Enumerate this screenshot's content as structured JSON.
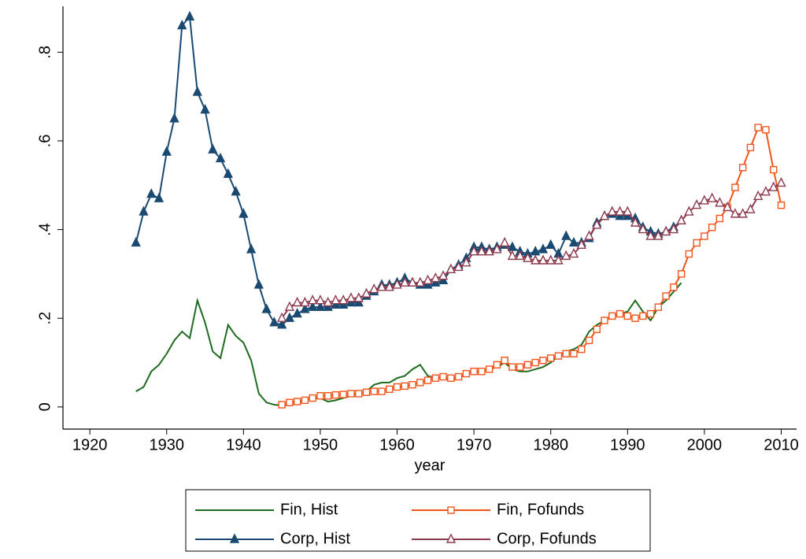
{
  "chart_data": {
    "type": "line",
    "x_label": "year",
    "xlim": [
      1916.5,
      2012
    ],
    "xticks": [
      1920,
      1930,
      1940,
      1950,
      1960,
      1970,
      1980,
      1990,
      2000,
      2010
    ],
    "ylim": [
      -0.05,
      0.9
    ],
    "yticks": [
      0,
      {
        "value": 0.2,
        "label": ".2"
      },
      {
        "value": 0.4,
        "label": ".4"
      },
      {
        "value": 0.6,
        "label": ".6"
      },
      {
        "value": 0.8,
        "label": ".8"
      }
    ],
    "grid": false,
    "legend": "bottom",
    "series": [
      {
        "name": "Fin, Hist",
        "color": "#1f6b1f",
        "marker": "none",
        "x": [
          1926,
          1927,
          1928,
          1929,
          1930,
          1931,
          1932,
          1933,
          1934,
          1935,
          1936,
          1937,
          1938,
          1939,
          1940,
          1941,
          1942,
          1943,
          1944,
          1945,
          1946,
          1947,
          1948,
          1949,
          1950,
          1951,
          1952,
          1953,
          1954,
          1955,
          1956,
          1957,
          1958,
          1959,
          1960,
          1961,
          1962,
          1963,
          1964,
          1965,
          1966,
          1967,
          1968,
          1969,
          1970,
          1971,
          1972,
          1973,
          1974,
          1975,
          1976,
          1977,
          1978,
          1979,
          1980,
          1981,
          1982,
          1983,
          1984,
          1985,
          1986,
          1987,
          1988,
          1989,
          1990,
          1991,
          1992,
          1993,
          1994,
          1995,
          1996,
          1997
        ],
        "values": [
          0.035,
          0.045,
          0.08,
          0.095,
          0.12,
          0.15,
          0.17,
          0.155,
          0.24,
          0.19,
          0.125,
          0.11,
          0.185,
          0.16,
          0.145,
          0.105,
          0.03,
          0.01,
          0.005,
          0.003,
          0.005,
          0.01,
          0.015,
          0.02,
          0.02,
          0.012,
          0.015,
          0.02,
          0.025,
          0.03,
          0.035,
          0.05,
          0.055,
          0.055,
          0.065,
          0.07,
          0.085,
          0.095,
          0.07,
          0.065,
          0.065,
          0.06,
          0.065,
          0.075,
          0.08,
          0.08,
          0.085,
          0.09,
          0.1,
          0.085,
          0.08,
          0.08,
          0.085,
          0.09,
          0.1,
          0.115,
          0.125,
          0.13,
          0.14,
          0.17,
          0.185,
          0.195,
          0.205,
          0.21,
          0.215,
          0.24,
          0.215,
          0.195,
          0.225,
          0.24,
          0.26,
          0.28
        ]
      },
      {
        "name": "Fin, Fofunds",
        "color": "#f2541b",
        "marker": "square-hollow",
        "x": [
          1945,
          1946,
          1947,
          1948,
          1949,
          1950,
          1951,
          1952,
          1953,
          1954,
          1955,
          1956,
          1957,
          1958,
          1959,
          1960,
          1961,
          1962,
          1963,
          1964,
          1965,
          1966,
          1967,
          1968,
          1969,
          1970,
          1971,
          1972,
          1973,
          1974,
          1975,
          1976,
          1977,
          1978,
          1979,
          1980,
          1981,
          1982,
          1983,
          1984,
          1985,
          1986,
          1987,
          1988,
          1989,
          1990,
          1991,
          1992,
          1993,
          1994,
          1995,
          1996,
          1997,
          1998,
          1999,
          2000,
          2001,
          2002,
          2003,
          2004,
          2005,
          2006,
          2007,
          2008,
          2009,
          2010
        ],
        "values": [
          0.005,
          0.01,
          0.012,
          0.015,
          0.02,
          0.025,
          0.025,
          0.027,
          0.028,
          0.03,
          0.03,
          0.033,
          0.035,
          0.035,
          0.04,
          0.045,
          0.047,
          0.05,
          0.055,
          0.06,
          0.065,
          0.068,
          0.065,
          0.068,
          0.075,
          0.08,
          0.08,
          0.085,
          0.095,
          0.105,
          0.09,
          0.09,
          0.095,
          0.1,
          0.105,
          0.11,
          0.115,
          0.12,
          0.12,
          0.13,
          0.15,
          0.175,
          0.195,
          0.205,
          0.21,
          0.205,
          0.2,
          0.205,
          0.21,
          0.225,
          0.25,
          0.27,
          0.3,
          0.345,
          0.37,
          0.385,
          0.405,
          0.425,
          0.45,
          0.495,
          0.54,
          0.585,
          0.63,
          0.625,
          0.535,
          0.455
        ]
      },
      {
        "name": "Corp, Hist",
        "color": "#1a4a72",
        "marker": "triangle",
        "x": [
          1926,
          1927,
          1928,
          1929,
          1930,
          1931,
          1932,
          1933,
          1934,
          1935,
          1936,
          1937,
          1938,
          1939,
          1940,
          1941,
          1942,
          1943,
          1944,
          1945,
          1946,
          1947,
          1948,
          1949,
          1950,
          1951,
          1952,
          1953,
          1954,
          1955,
          1956,
          1957,
          1958,
          1959,
          1960,
          1961,
          1962,
          1963,
          1964,
          1965,
          1966,
          1967,
          1968,
          1969,
          1970,
          1971,
          1972,
          1973,
          1974,
          1975,
          1976,
          1977,
          1978,
          1979,
          1980,
          1981,
          1982,
          1983,
          1984,
          1985,
          1986,
          1987,
          1988,
          1989,
          1990,
          1991,
          1992,
          1993,
          1994,
          1995,
          1996,
          1997
        ],
        "values": [
          0.37,
          0.44,
          0.48,
          0.47,
          0.575,
          0.65,
          0.86,
          0.88,
          0.71,
          0.67,
          0.58,
          0.56,
          0.525,
          0.485,
          0.435,
          0.355,
          0.275,
          0.22,
          0.19,
          0.185,
          0.2,
          0.21,
          0.22,
          0.225,
          0.225,
          0.225,
          0.23,
          0.23,
          0.235,
          0.235,
          0.25,
          0.26,
          0.275,
          0.275,
          0.28,
          0.29,
          0.28,
          0.275,
          0.275,
          0.28,
          0.285,
          0.31,
          0.32,
          0.335,
          0.36,
          0.36,
          0.355,
          0.36,
          0.365,
          0.36,
          0.35,
          0.345,
          0.35,
          0.355,
          0.365,
          0.345,
          0.385,
          0.37,
          0.37,
          0.38,
          0.415,
          0.43,
          0.435,
          0.43,
          0.43,
          0.425,
          0.405,
          0.395,
          0.39,
          0.395,
          0.405,
          0.42
        ]
      },
      {
        "name": "Corp, Fofunds",
        "color": "#8e3a4e",
        "marker": "triangle-hollow",
        "x": [
          1945,
          1946,
          1947,
          1948,
          1949,
          1950,
          1951,
          1952,
          1953,
          1954,
          1955,
          1956,
          1957,
          1958,
          1959,
          1960,
          1961,
          1962,
          1963,
          1964,
          1965,
          1966,
          1967,
          1968,
          1969,
          1970,
          1971,
          1972,
          1973,
          1974,
          1975,
          1976,
          1977,
          1978,
          1979,
          1980,
          1981,
          1982,
          1983,
          1984,
          1985,
          1986,
          1987,
          1988,
          1989,
          1990,
          1991,
          1992,
          1993,
          1994,
          1995,
          1996,
          1997,
          1998,
          1999,
          2000,
          2001,
          2002,
          2003,
          2004,
          2005,
          2006,
          2007,
          2008,
          2009,
          2010
        ],
        "values": [
          0.2,
          0.225,
          0.235,
          0.235,
          0.24,
          0.24,
          0.235,
          0.24,
          0.24,
          0.245,
          0.245,
          0.255,
          0.265,
          0.27,
          0.27,
          0.275,
          0.28,
          0.28,
          0.28,
          0.285,
          0.29,
          0.295,
          0.31,
          0.315,
          0.325,
          0.35,
          0.35,
          0.35,
          0.355,
          0.37,
          0.34,
          0.34,
          0.335,
          0.33,
          0.33,
          0.33,
          0.33,
          0.34,
          0.345,
          0.365,
          0.385,
          0.41,
          0.43,
          0.44,
          0.44,
          0.44,
          0.415,
          0.4,
          0.385,
          0.385,
          0.395,
          0.4,
          0.42,
          0.44,
          0.455,
          0.465,
          0.47,
          0.46,
          0.45,
          0.435,
          0.435,
          0.445,
          0.475,
          0.485,
          0.495,
          0.505
        ]
      }
    ]
  }
}
